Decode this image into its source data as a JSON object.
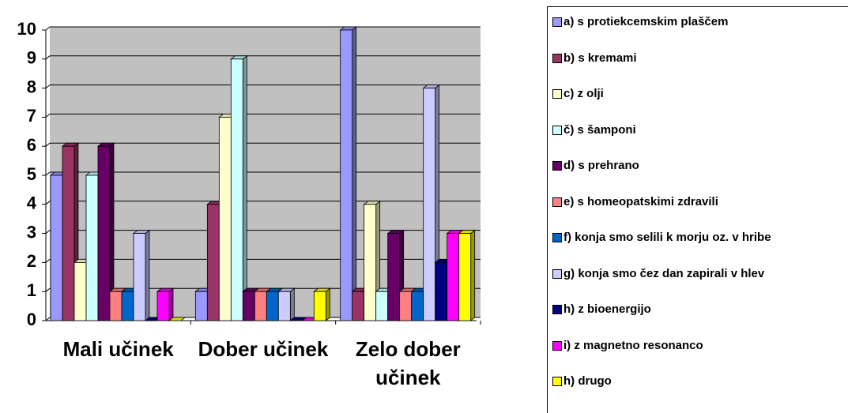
{
  "chart_data": {
    "type": "bar",
    "categories": [
      "Mali učinek",
      "Dober učinek",
      "Zelo dober učinek"
    ],
    "series": [
      {
        "name": "a) s protiekcemskim plaščem",
        "color": "#9999ff",
        "values": [
          5,
          1,
          10
        ]
      },
      {
        "name": "b) s kremami",
        "color": "#993366",
        "values": [
          6,
          4,
          1
        ]
      },
      {
        "name": "c) z olji",
        "color": "#ffffcc",
        "values": [
          2,
          7,
          4
        ]
      },
      {
        "name": "č) s šamponi",
        "color": "#ccffff",
        "values": [
          5,
          9,
          1
        ]
      },
      {
        "name": "d) s prehrano",
        "color": "#660066",
        "values": [
          6,
          1,
          3
        ]
      },
      {
        "name": "e) s homeopatskimi zdravili",
        "color": "#ff8080",
        "values": [
          1,
          1,
          1
        ]
      },
      {
        "name": "f) konja smo selili k morju oz. v hribe",
        "color": "#0066cc",
        "values": [
          1,
          1,
          1
        ]
      },
      {
        "name": "g) konja smo čez dan zapirali v hlev",
        "color": "#ccccff",
        "values": [
          3,
          1,
          8
        ]
      },
      {
        "name": "h) z bioenergijo",
        "color": "#000080",
        "values": [
          0,
          0,
          2
        ]
      },
      {
        "name": "i) z magnetno resonanco",
        "color": "#ff00ff",
        "values": [
          1,
          0,
          3
        ]
      },
      {
        "name": "h) drugo",
        "color": "#ffff00",
        "values": [
          0,
          1,
          3
        ]
      }
    ],
    "ylim": [
      0,
      10
    ],
    "yticks": [
      0,
      1,
      2,
      3,
      4,
      5,
      6,
      7,
      8,
      9,
      10
    ],
    "grid": true
  }
}
